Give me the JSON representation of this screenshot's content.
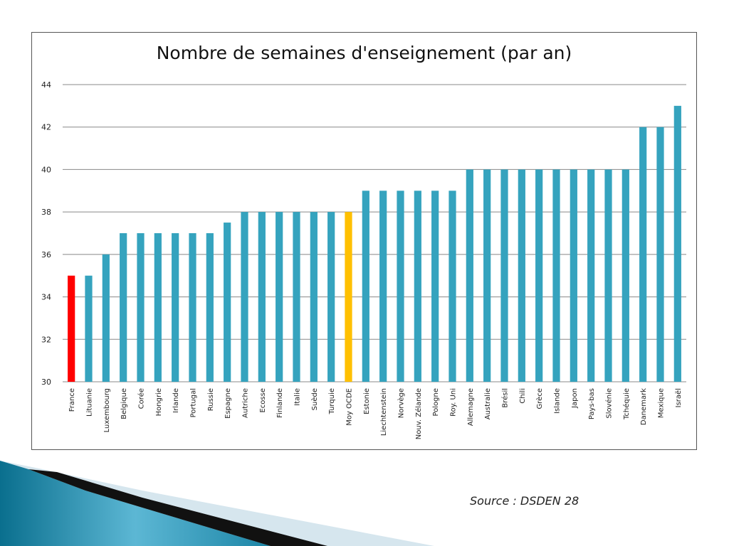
{
  "slide": {
    "source_note": "Source : DSDEN 28"
  },
  "chart_data": {
    "type": "bar",
    "title": "Nombre de semaines d'enseignement (par an)",
    "xlabel": "",
    "ylabel": "",
    "ylim": [
      30,
      44
    ],
    "yticks": [
      30,
      32,
      34,
      36,
      38,
      40,
      42,
      44
    ],
    "grid": true,
    "legend": "none",
    "colors": {
      "default": "#35a3be",
      "highlight_france": "#ff0000",
      "highlight_average": "#ffc000",
      "grid": "#888888"
    },
    "categories": [
      "France",
      "Lituanie",
      "Luxembourg",
      "Belgique",
      "Corée",
      "Hongrie",
      "Irlande",
      "Portugal",
      "Russie",
      "Espagne",
      "Autriche",
      "Ecosse",
      "Finlande",
      "Italie",
      "Suède",
      "Turquie",
      "Moy OCDE",
      "Estonie",
      "Liechtenstein",
      "Norvège",
      "Nouv. Zélande",
      "Pologne",
      "Roy. Uni",
      "Allemagne",
      "Australie",
      "Brésil",
      "Chili",
      "Grèce",
      "Islande",
      "Japon",
      "Pays-bas",
      "Slovénie",
      "Tchéquie",
      "Danemark",
      "Mexique",
      "Israël"
    ],
    "values": [
      35,
      35,
      36,
      37,
      37,
      37,
      37,
      37,
      37,
      37.5,
      38,
      38,
      38,
      38,
      38,
      38,
      38,
      39,
      39,
      39,
      39,
      39,
      39,
      40,
      40,
      40,
      40,
      40,
      40,
      40,
      40,
      40,
      40,
      42,
      42,
      43
    ],
    "bar_colors": [
      "#ff0000",
      "#35a3be",
      "#35a3be",
      "#35a3be",
      "#35a3be",
      "#35a3be",
      "#35a3be",
      "#35a3be",
      "#35a3be",
      "#35a3be",
      "#35a3be",
      "#35a3be",
      "#35a3be",
      "#35a3be",
      "#35a3be",
      "#35a3be",
      "#ffc000",
      "#35a3be",
      "#35a3be",
      "#35a3be",
      "#35a3be",
      "#35a3be",
      "#35a3be",
      "#35a3be",
      "#35a3be",
      "#35a3be",
      "#35a3be",
      "#35a3be",
      "#35a3be",
      "#35a3be",
      "#35a3be",
      "#35a3be",
      "#35a3be",
      "#35a3be",
      "#35a3be",
      "#35a3be"
    ]
  }
}
